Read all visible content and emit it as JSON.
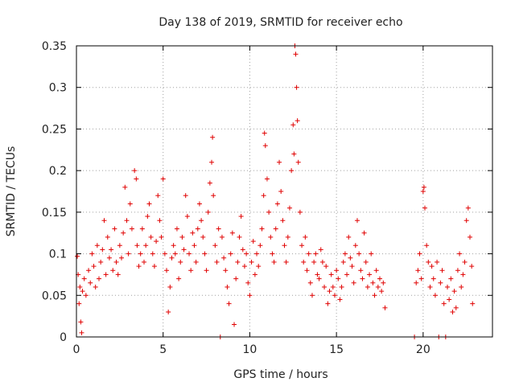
{
  "chart_data": {
    "type": "scatter",
    "title": "Day 138 of 2019, SRMTID for receiver echo",
    "xlabel": "GPS time / hours",
    "ylabel": "SRMTID / TECUs",
    "xlim": [
      0,
      24
    ],
    "ylim": [
      0,
      0.35
    ],
    "xticks": [
      0,
      5,
      10,
      15,
      20
    ],
    "xtick_labels": [
      "0",
      "5",
      "10",
      "15",
      "20"
    ],
    "yticks": [
      0,
      0.05,
      0.1,
      0.15,
      0.2,
      0.25,
      0.3,
      0.35
    ],
    "ytick_labels": [
      "0",
      "0.05",
      "0.1",
      "0.15",
      "0.2",
      "0.25",
      "0.3",
      "0.35"
    ],
    "grid": true,
    "marker": "+",
    "color": "#e00000",
    "series": [
      {
        "name": "SRMTID",
        "points": [
          [
            0.05,
            0.097
          ],
          [
            0.1,
            0.075
          ],
          [
            0.15,
            0.04
          ],
          [
            0.2,
            0.06
          ],
          [
            0.25,
            0.018
          ],
          [
            0.3,
            0.005
          ],
          [
            0.35,
            0.055
          ],
          [
            0.45,
            0.07
          ],
          [
            0.55,
            0.05
          ],
          [
            0.7,
            0.08
          ],
          [
            0.8,
            0.065
          ],
          [
            0.9,
            0.1
          ],
          [
            1.0,
            0.085
          ],
          [
            1.1,
            0.06
          ],
          [
            1.2,
            0.11
          ],
          [
            1.3,
            0.07
          ],
          [
            1.4,
            0.09
          ],
          [
            1.5,
            0.105
          ],
          [
            1.6,
            0.14
          ],
          [
            1.7,
            0.075
          ],
          [
            1.8,
            0.12
          ],
          [
            1.9,
            0.095
          ],
          [
            2.0,
            0.105
          ],
          [
            2.1,
            0.08
          ],
          [
            2.2,
            0.13
          ],
          [
            2.3,
            0.09
          ],
          [
            2.4,
            0.075
          ],
          [
            2.5,
            0.11
          ],
          [
            2.6,
            0.095
          ],
          [
            2.7,
            0.125
          ],
          [
            2.8,
            0.18
          ],
          [
            2.9,
            0.14
          ],
          [
            3.0,
            0.1
          ],
          [
            3.1,
            0.16
          ],
          [
            3.2,
            0.13
          ],
          [
            3.35,
            0.2
          ],
          [
            3.45,
            0.19
          ],
          [
            3.5,
            0.11
          ],
          [
            3.6,
            0.085
          ],
          [
            3.7,
            0.1
          ],
          [
            3.8,
            0.13
          ],
          [
            3.9,
            0.09
          ],
          [
            4.0,
            0.11
          ],
          [
            4.1,
            0.145
          ],
          [
            4.2,
            0.16
          ],
          [
            4.3,
            0.12
          ],
          [
            4.4,
            0.1
          ],
          [
            4.5,
            0.085
          ],
          [
            4.6,
            0.115
          ],
          [
            4.7,
            0.17
          ],
          [
            4.8,
            0.14
          ],
          [
            4.9,
            0.12
          ],
          [
            5.0,
            0.19
          ],
          [
            5.1,
            0.1
          ],
          [
            5.2,
            0.08
          ],
          [
            5.3,
            0.03
          ],
          [
            5.4,
            0.06
          ],
          [
            5.5,
            0.095
          ],
          [
            5.6,
            0.11
          ],
          [
            5.7,
            0.1
          ],
          [
            5.8,
            0.13
          ],
          [
            5.9,
            0.07
          ],
          [
            6.0,
            0.09
          ],
          [
            6.1,
            0.12
          ],
          [
            6.2,
            0.105
          ],
          [
            6.3,
            0.17
          ],
          [
            6.4,
            0.145
          ],
          [
            6.5,
            0.1
          ],
          [
            6.6,
            0.08
          ],
          [
            6.7,
            0.125
          ],
          [
            6.8,
            0.11
          ],
          [
            6.9,
            0.09
          ],
          [
            7.0,
            0.13
          ],
          [
            7.1,
            0.16
          ],
          [
            7.2,
            0.14
          ],
          [
            7.3,
            0.12
          ],
          [
            7.4,
            0.1
          ],
          [
            7.5,
            0.08
          ],
          [
            7.6,
            0.15
          ],
          [
            7.7,
            0.185
          ],
          [
            7.8,
            0.21
          ],
          [
            7.85,
            0.24
          ],
          [
            7.9,
            0.17
          ],
          [
            8.0,
            0.11
          ],
          [
            8.1,
            0.09
          ],
          [
            8.2,
            0.13
          ],
          [
            8.3,
            0.0
          ],
          [
            8.4,
            0.12
          ],
          [
            8.5,
            0.095
          ],
          [
            8.6,
            0.08
          ],
          [
            8.7,
            0.06
          ],
          [
            8.8,
            0.04
          ],
          [
            8.9,
            0.1
          ],
          [
            9.0,
            0.125
          ],
          [
            9.1,
            0.015
          ],
          [
            9.2,
            0.07
          ],
          [
            9.3,
            0.09
          ],
          [
            9.4,
            0.12
          ],
          [
            9.5,
            0.145
          ],
          [
            9.6,
            0.105
          ],
          [
            9.7,
            0.085
          ],
          [
            9.8,
            0.1
          ],
          [
            9.9,
            0.065
          ],
          [
            10.0,
            0.05
          ],
          [
            10.1,
            0.09
          ],
          [
            10.2,
            0.115
          ],
          [
            10.3,
            0.075
          ],
          [
            10.4,
            0.1
          ],
          [
            10.5,
            0.085
          ],
          [
            10.6,
            0.11
          ],
          [
            10.7,
            0.13
          ],
          [
            10.8,
            0.17
          ],
          [
            10.85,
            0.245
          ],
          [
            10.9,
            0.23
          ],
          [
            11.0,
            0.19
          ],
          [
            11.1,
            0.15
          ],
          [
            11.2,
            0.12
          ],
          [
            11.3,
            0.1
          ],
          [
            11.4,
            0.09
          ],
          [
            11.5,
            0.13
          ],
          [
            11.6,
            0.16
          ],
          [
            11.7,
            0.21
          ],
          [
            11.8,
            0.175
          ],
          [
            11.9,
            0.14
          ],
          [
            12.0,
            0.11
          ],
          [
            12.1,
            0.09
          ],
          [
            12.2,
            0.12
          ],
          [
            12.3,
            0.155
          ],
          [
            12.4,
            0.2
          ],
          [
            12.5,
            0.255
          ],
          [
            12.55,
            0.22
          ],
          [
            12.6,
            0.35
          ],
          [
            12.65,
            0.34
          ],
          [
            12.7,
            0.3
          ],
          [
            12.75,
            0.26
          ],
          [
            12.8,
            0.21
          ],
          [
            12.9,
            0.15
          ],
          [
            13.0,
            0.11
          ],
          [
            13.1,
            0.09
          ],
          [
            13.2,
            0.12
          ],
          [
            13.3,
            0.08
          ],
          [
            13.4,
            0.1
          ],
          [
            13.5,
            0.065
          ],
          [
            13.6,
            0.05
          ],
          [
            13.7,
            0.09
          ],
          [
            13.8,
            0.1
          ],
          [
            13.9,
            0.075
          ],
          [
            14.0,
            0.07
          ],
          [
            14.1,
            0.105
          ],
          [
            14.2,
            0.09
          ],
          [
            14.3,
            0.06
          ],
          [
            14.4,
            0.085
          ],
          [
            14.5,
            0.04
          ],
          [
            14.6,
            0.055
          ],
          [
            14.7,
            0.075
          ],
          [
            14.8,
            0.06
          ],
          [
            14.9,
            0.05
          ],
          [
            15.0,
            0.08
          ],
          [
            15.1,
            0.07
          ],
          [
            15.2,
            0.045
          ],
          [
            15.3,
            0.06
          ],
          [
            15.4,
            0.09
          ],
          [
            15.5,
            0.1
          ],
          [
            15.6,
            0.075
          ],
          [
            15.7,
            0.12
          ],
          [
            15.8,
            0.095
          ],
          [
            15.9,
            0.085
          ],
          [
            16.0,
            0.065
          ],
          [
            16.1,
            0.11
          ],
          [
            16.2,
            0.14
          ],
          [
            16.3,
            0.1
          ],
          [
            16.4,
            0.08
          ],
          [
            16.5,
            0.07
          ],
          [
            16.6,
            0.125
          ],
          [
            16.7,
            0.09
          ],
          [
            16.8,
            0.06
          ],
          [
            16.9,
            0.075
          ],
          [
            17.0,
            0.1
          ],
          [
            17.1,
            0.065
          ],
          [
            17.2,
            0.05
          ],
          [
            17.3,
            0.08
          ],
          [
            17.4,
            0.06
          ],
          [
            17.5,
            0.07
          ],
          [
            17.6,
            0.055
          ],
          [
            17.7,
            0.065
          ],
          [
            17.8,
            0.035
          ],
          [
            19.5,
            0.0
          ],
          [
            19.6,
            0.065
          ],
          [
            19.7,
            0.08
          ],
          [
            19.8,
            0.1
          ],
          [
            19.9,
            0.07
          ],
          [
            20.0,
            0.175
          ],
          [
            20.05,
            0.18
          ],
          [
            20.1,
            0.155
          ],
          [
            20.2,
            0.11
          ],
          [
            20.3,
            0.09
          ],
          [
            20.4,
            0.06
          ],
          [
            20.5,
            0.085
          ],
          [
            20.6,
            0.07
          ],
          [
            20.7,
            0.05
          ],
          [
            20.8,
            0.09
          ],
          [
            20.9,
            0.0
          ],
          [
            21.0,
            0.065
          ],
          [
            21.1,
            0.08
          ],
          [
            21.2,
            0.04
          ],
          [
            21.3,
            0.0
          ],
          [
            21.4,
            0.06
          ],
          [
            21.5,
            0.045
          ],
          [
            21.6,
            0.07
          ],
          [
            21.7,
            0.03
          ],
          [
            21.8,
            0.055
          ],
          [
            21.9,
            0.035
          ],
          [
            22.0,
            0.08
          ],
          [
            22.1,
            0.1
          ],
          [
            22.2,
            0.06
          ],
          [
            22.3,
            0.075
          ],
          [
            22.4,
            0.09
          ],
          [
            22.5,
            0.14
          ],
          [
            22.6,
            0.155
          ],
          [
            22.7,
            0.12
          ],
          [
            22.8,
            0.085
          ],
          [
            22.85,
            0.04
          ]
        ]
      }
    ]
  }
}
